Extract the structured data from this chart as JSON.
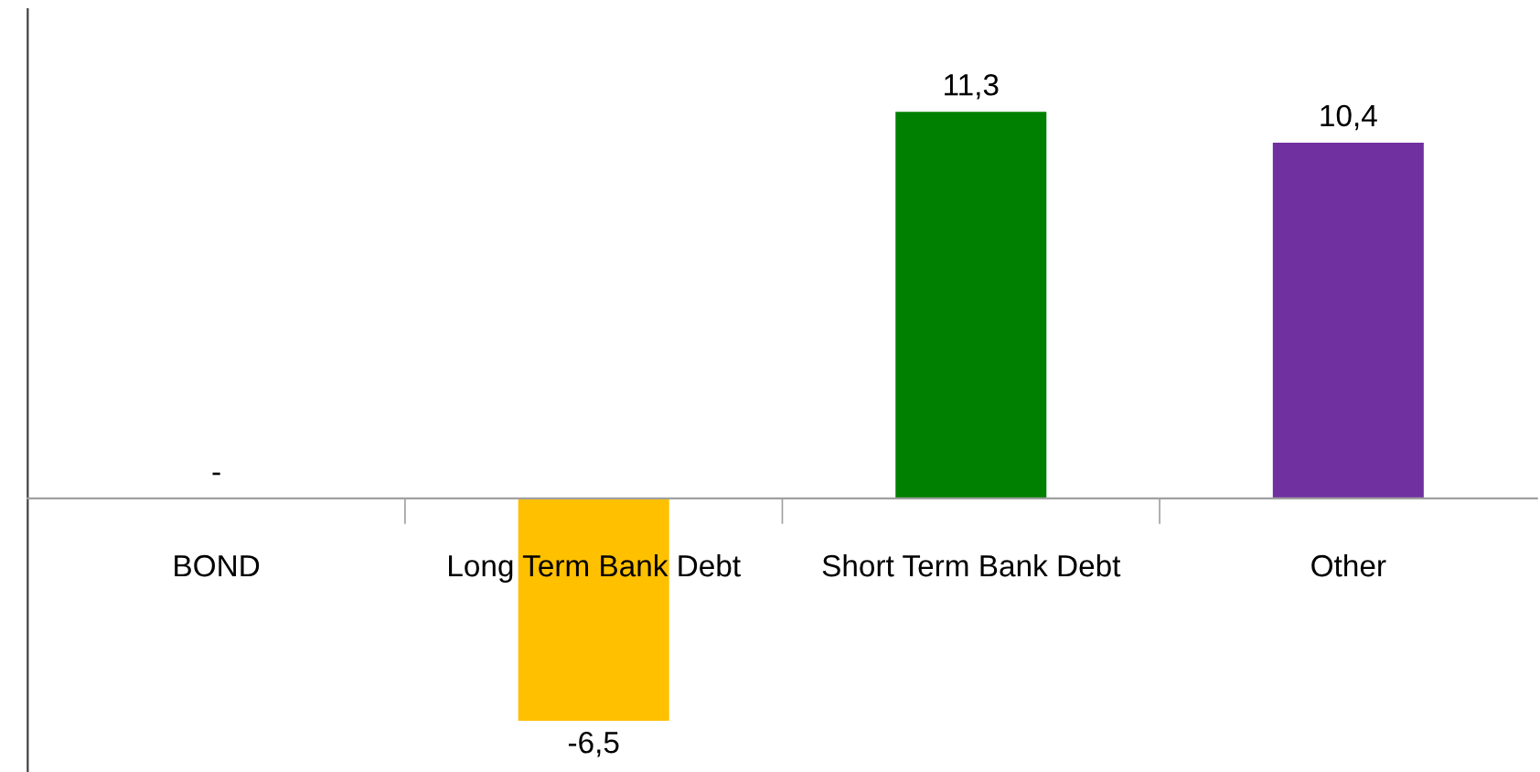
{
  "chart_data": {
    "type": "bar",
    "categories": [
      "BOND",
      "Long Term Bank Debt",
      "Short Term Bank Debt",
      "Other"
    ],
    "values": [
      0,
      -6.5,
      11.3,
      10.4
    ],
    "colors": [
      "#4472c4",
      "#ffc000",
      "#008000",
      "#7030a0"
    ],
    "value_labels": [
      "-",
      "-6,5",
      "11,3",
      "10,4"
    ],
    "ylim": [
      -8,
      14.3
    ],
    "tick_labels": "x",
    "grid": false,
    "legend": false
  }
}
